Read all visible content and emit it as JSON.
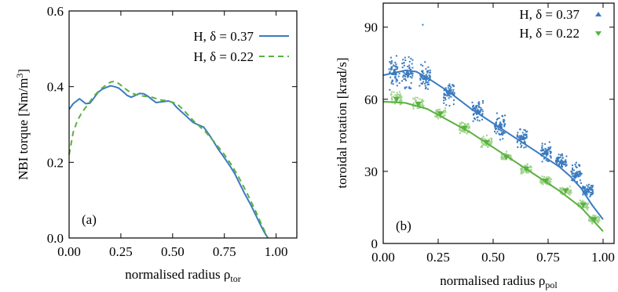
{
  "chart_data": [
    {
      "type": "line",
      "panel_label": "(a)",
      "xlabel": "normalised radius ρ",
      "xlabel_sub": "tor",
      "ylabel": "NBI torque [Nm/m",
      "ylabel_sup": "3",
      "ylabel_end": "]",
      "xlim": [
        0,
        1.1
      ],
      "ylim": [
        0,
        0.6
      ],
      "xticks": [
        {
          "value": 0,
          "label": "0.00"
        },
        {
          "value": 0.25,
          "label": "0.25"
        },
        {
          "value": 0.5,
          "label": "0.50"
        },
        {
          "value": 0.75,
          "label": "0.75"
        },
        {
          "value": 1.0,
          "label": "1.00"
        }
      ],
      "yticks": [
        {
          "value": 0,
          "label": "0.0"
        },
        {
          "value": 0.2,
          "label": "0.2"
        },
        {
          "value": 0.4,
          "label": "0.4"
        },
        {
          "value": 0.6,
          "label": "0.6"
        }
      ],
      "legend_position": "top-right",
      "series": [
        {
          "name": "H, δ = 0.37",
          "color": "#3b7bbf",
          "dash": "solid",
          "x": [
            0.0,
            0.02,
            0.05,
            0.08,
            0.1,
            0.12,
            0.14,
            0.16,
            0.18,
            0.2,
            0.22,
            0.24,
            0.26,
            0.28,
            0.3,
            0.32,
            0.34,
            0.36,
            0.38,
            0.4,
            0.42,
            0.45,
            0.48,
            0.5,
            0.52,
            0.55,
            0.58,
            0.6,
            0.62,
            0.65,
            0.68,
            0.7,
            0.72,
            0.75,
            0.78,
            0.8,
            0.82,
            0.85,
            0.88,
            0.9,
            0.92,
            0.94,
            0.96
          ],
          "y": [
            0.34,
            0.355,
            0.368,
            0.355,
            0.356,
            0.37,
            0.385,
            0.393,
            0.398,
            0.402,
            0.4,
            0.396,
            0.387,
            0.377,
            0.372,
            0.377,
            0.382,
            0.381,
            0.375,
            0.366,
            0.358,
            0.36,
            0.362,
            0.358,
            0.345,
            0.33,
            0.315,
            0.305,
            0.3,
            0.293,
            0.27,
            0.253,
            0.235,
            0.212,
            0.188,
            0.17,
            0.148,
            0.115,
            0.085,
            0.062,
            0.04,
            0.018,
            0.0
          ]
        },
        {
          "name": "H, δ = 0.22",
          "color": "#5ab040",
          "dash": "dashed",
          "x": [
            0.0,
            0.02,
            0.04,
            0.06,
            0.08,
            0.1,
            0.12,
            0.15,
            0.18,
            0.2,
            0.22,
            0.24,
            0.27,
            0.3,
            0.33,
            0.36,
            0.4,
            0.44,
            0.48,
            0.52,
            0.55,
            0.58,
            0.6,
            0.63,
            0.66,
            0.7,
            0.74,
            0.78,
            0.82,
            0.86,
            0.9,
            0.93,
            0.96
          ],
          "y": [
            0.22,
            0.28,
            0.31,
            0.33,
            0.345,
            0.36,
            0.375,
            0.392,
            0.405,
            0.412,
            0.414,
            0.408,
            0.395,
            0.383,
            0.378,
            0.375,
            0.372,
            0.365,
            0.362,
            0.355,
            0.34,
            0.322,
            0.31,
            0.295,
            0.28,
            0.255,
            0.228,
            0.197,
            0.16,
            0.118,
            0.072,
            0.035,
            0.0
          ]
        }
      ]
    },
    {
      "type": "scatter",
      "panel_label": "(b)",
      "xlabel": "normalised radius ρ",
      "xlabel_sub": "pol",
      "ylabel": "toroidal rotation [krad/s]",
      "xlim": [
        0,
        1.05
      ],
      "ylim": [
        0,
        100
      ],
      "xticks": [
        {
          "value": 0,
          "label": "0.00"
        },
        {
          "value": 0.25,
          "label": "0.25"
        },
        {
          "value": 0.5,
          "label": "0.50"
        },
        {
          "value": 0.75,
          "label": "0.75"
        },
        {
          "value": 1.0,
          "label": "1.00"
        }
      ],
      "yticks": [
        {
          "value": 0,
          "label": "0"
        },
        {
          "value": 30,
          "label": "30"
        },
        {
          "value": 60,
          "label": "60"
        },
        {
          "value": 90,
          "label": "90"
        }
      ],
      "legend_position": "top-right",
      "series": [
        {
          "name": "H, δ = 0.37",
          "color": "#3b7bbf",
          "marker": "triangle-up",
          "scatter_groups": [
            {
              "x": 0.05,
              "y": 71,
              "spread": 7
            },
            {
              "x": 0.11,
              "y": 71,
              "spread": 7
            },
            {
              "x": 0.19,
              "y": 69,
              "spread": 6
            },
            {
              "x": 0.3,
              "y": 63,
              "spread": 5
            },
            {
              "x": 0.43,
              "y": 55,
              "spread": 5
            },
            {
              "x": 0.53,
              "y": 49,
              "spread": 5
            },
            {
              "x": 0.63,
              "y": 44,
              "spread": 4
            },
            {
              "x": 0.74,
              "y": 38,
              "spread": 4
            },
            {
              "x": 0.81,
              "y": 34,
              "spread": 3
            },
            {
              "x": 0.88,
              "y": 29,
              "spread": 4
            },
            {
              "x": 0.93,
              "y": 22,
              "spread": 3
            }
          ],
          "outlier_points": [
            {
              "x": 0.18,
              "y": 91
            }
          ],
          "fit": {
            "x": [
              0.0,
              0.05,
              0.1,
              0.15,
              0.2,
              0.3,
              0.4,
              0.5,
              0.6,
              0.7,
              0.8,
              0.85,
              0.9,
              0.95,
              1.0
            ],
            "y": [
              70,
              71,
              72,
              71.5,
              69,
              63,
              56,
              50,
              44,
              38,
              32,
              28,
              23,
              16,
              10
            ]
          }
        },
        {
          "name": "H, δ = 0.22",
          "color": "#5ab040",
          "marker": "triangle-down",
          "scatter_groups": [
            {
              "x": 0.06,
              "y": 60,
              "spread": 3
            },
            {
              "x": 0.16,
              "y": 58,
              "spread": 3
            },
            {
              "x": 0.26,
              "y": 54,
              "spread": 2.5
            },
            {
              "x": 0.37,
              "y": 48,
              "spread": 2.5
            },
            {
              "x": 0.47,
              "y": 42,
              "spread": 2.5
            },
            {
              "x": 0.56,
              "y": 36,
              "spread": 2
            },
            {
              "x": 0.65,
              "y": 31,
              "spread": 2
            },
            {
              "x": 0.74,
              "y": 26,
              "spread": 2
            },
            {
              "x": 0.83,
              "y": 22,
              "spread": 2
            },
            {
              "x": 0.91,
              "y": 16,
              "spread": 2
            },
            {
              "x": 0.96,
              "y": 10,
              "spread": 2
            }
          ],
          "outlier_points": [],
          "fit": {
            "x": [
              0.0,
              0.1,
              0.2,
              0.3,
              0.4,
              0.5,
              0.6,
              0.7,
              0.8,
              0.85,
              0.9,
              0.95,
              1.0
            ],
            "y": [
              59,
              58.5,
              56,
              51,
              46,
              40,
              34,
              28,
              22,
              18.5,
              15,
              10,
              5
            ]
          }
        }
      ]
    }
  ]
}
